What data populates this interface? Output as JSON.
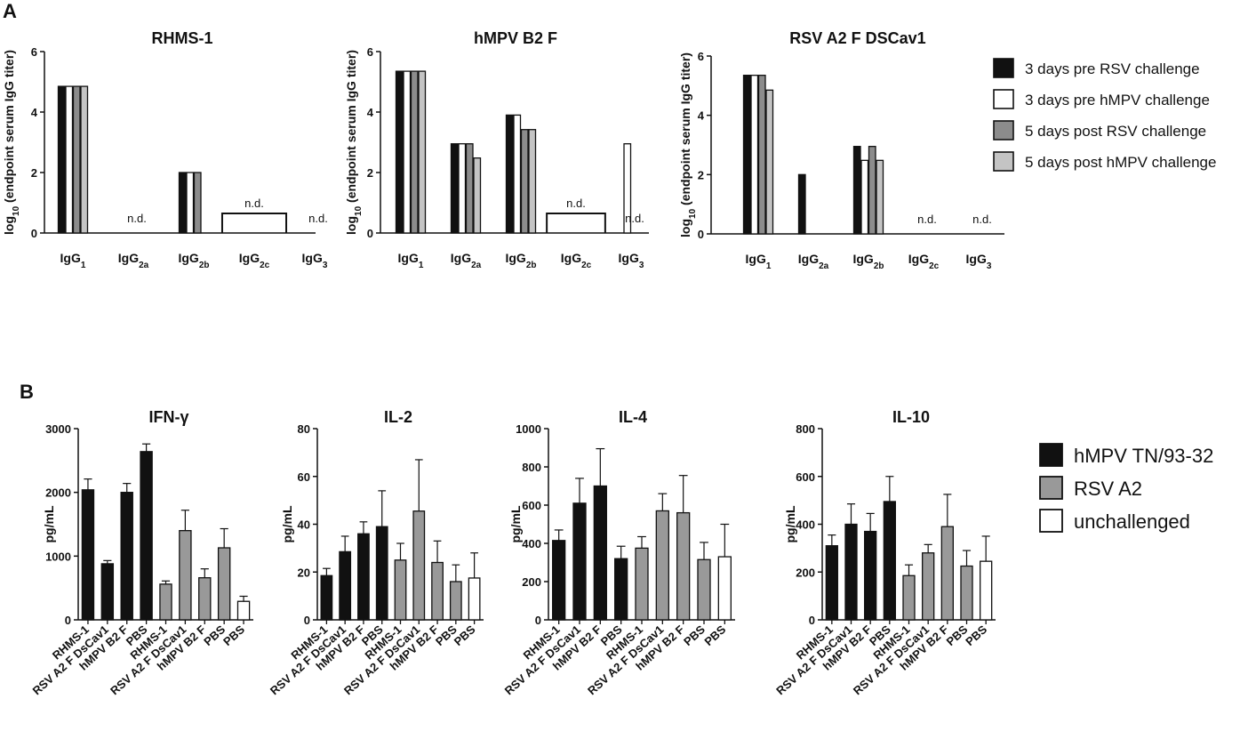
{
  "panels": {
    "A": "A",
    "B": "B"
  },
  "nd_label": "n.d.",
  "panel_a": {
    "ylabel_main": "log",
    "ylabel_sub": "10",
    "ylabel_rest": " (endpoint serum IgG titer)",
    "legend": [
      {
        "label": "3 days pre RSV challenge",
        "color": "#111111"
      },
      {
        "label": "3 days pre hMPV challenge",
        "color": "#ffffff"
      },
      {
        "label": "5 days post RSV challenge",
        "color": "#8c8c8c"
      },
      {
        "label": "5 days post hMPV challenge",
        "color": "#c4c4c4"
      }
    ]
  },
  "panel_b": {
    "ylabel": "pg/mL",
    "legend": [
      {
        "label": "hMPV TN/93-32",
        "color": "#111111"
      },
      {
        "label": "RSV A2",
        "color": "#999999"
      },
      {
        "label": "unchallenged",
        "color": "#ffffff"
      }
    ]
  },
  "chart_data": [
    {
      "type": "bar",
      "title": "RHMS-1",
      "categories": [
        {
          "base": "IgG",
          "sub": "1"
        },
        {
          "base": "IgG",
          "sub": "2a"
        },
        {
          "base": "IgG",
          "sub": "2b"
        },
        {
          "base": "IgG",
          "sub": "2c"
        },
        {
          "base": "IgG",
          "sub": "3"
        }
      ],
      "series": [
        {
          "name": "3 days pre RSV challenge",
          "values": [
            4.85,
            null,
            2.0,
            null,
            null
          ]
        },
        {
          "name": "3 days pre hMPV challenge",
          "values": [
            4.85,
            null,
            2.0,
            null,
            null
          ]
        },
        {
          "name": "5 days post RSV challenge",
          "values": [
            4.85,
            null,
            2.0,
            null,
            null
          ]
        },
        {
          "name": "5 days post hMPV challenge",
          "values": [
            4.85,
            null,
            null,
            null,
            null
          ]
        }
      ],
      "nd": [
        1,
        3,
        4
      ],
      "nd_bracket": [
        3
      ],
      "ylim": [
        0,
        6
      ],
      "yticks": [
        0,
        2,
        4,
        6
      ]
    },
    {
      "type": "bar",
      "title": "hMPV B2 F",
      "categories": [
        {
          "base": "IgG",
          "sub": "1"
        },
        {
          "base": "IgG",
          "sub": "2a"
        },
        {
          "base": "IgG",
          "sub": "2b"
        },
        {
          "base": "IgG",
          "sub": "2c"
        },
        {
          "base": "IgG",
          "sub": "3"
        }
      ],
      "series": [
        {
          "name": "3 days pre RSV challenge",
          "values": [
            5.35,
            2.95,
            3.9,
            null,
            null
          ]
        },
        {
          "name": "3 days pre hMPV challenge",
          "values": [
            5.35,
            2.95,
            3.9,
            null,
            2.95
          ]
        },
        {
          "name": "5 days post RSV challenge",
          "values": [
            5.35,
            2.95,
            3.42,
            null,
            null
          ]
        },
        {
          "name": "5 days post hMPV challenge",
          "values": [
            5.35,
            2.48,
            3.42,
            null,
            null
          ]
        }
      ],
      "nd": [
        3,
        4
      ],
      "nd_bracket": [
        3
      ],
      "ylim": [
        0,
        6
      ],
      "yticks": [
        0,
        2,
        4,
        6
      ]
    },
    {
      "type": "bar",
      "title": "RSV A2 F DSCav1",
      "categories": [
        {
          "base": "IgG",
          "sub": "1"
        },
        {
          "base": "IgG",
          "sub": "2a"
        },
        {
          "base": "IgG",
          "sub": "2b"
        },
        {
          "base": "IgG",
          "sub": "2c"
        },
        {
          "base": "IgG",
          "sub": "3"
        }
      ],
      "series": [
        {
          "name": "3 days pre RSV challenge",
          "values": [
            5.35,
            2.0,
            2.95,
            null,
            null
          ]
        },
        {
          "name": "3 days pre hMPV challenge",
          "values": [
            5.35,
            null,
            2.48,
            null,
            null
          ]
        },
        {
          "name": "5 days post RSV challenge",
          "values": [
            5.35,
            null,
            2.95,
            null,
            null
          ]
        },
        {
          "name": "5 days post hMPV challenge",
          "values": [
            4.85,
            null,
            2.48,
            null,
            null
          ]
        }
      ],
      "nd": [
        3,
        4
      ],
      "nd_bracket": [],
      "ylim": [
        0,
        6
      ],
      "yticks": [
        0,
        2,
        4,
        6
      ]
    },
    {
      "type": "bar",
      "title": "IFN-γ",
      "categories": [
        "RHMS-1",
        "RSV A2 F DsCav1",
        "hMPV B2 F",
        "PBS",
        "RHMS-1",
        "RSV A2 F DsCav1",
        "hMPV B2 F",
        "PBS",
        "PBS"
      ],
      "groups": [
        "hMPV TN/93-32",
        "hMPV TN/93-32",
        "hMPV TN/93-32",
        "hMPV TN/93-32",
        "RSV A2",
        "RSV A2",
        "RSV A2",
        "RSV A2",
        "unchallenged"
      ],
      "values": [
        2040,
        880,
        2000,
        2640,
        560,
        1400,
        660,
        1130,
        290
      ],
      "errors": [
        170,
        50,
        140,
        120,
        50,
        320,
        140,
        300,
        80
      ],
      "ylim": [
        0,
        3000
      ],
      "yticks": [
        0,
        1000,
        2000,
        3000
      ]
    },
    {
      "type": "bar",
      "title": "IL-2",
      "categories": [
        "RHMS-1",
        "RSV A2 F DsCav1",
        "hMPV B2 F",
        "PBS",
        "RHMS-1",
        "RSV A2 F DsCav1",
        "hMPV B2 F",
        "PBS",
        "PBS"
      ],
      "groups": [
        "hMPV TN/93-32",
        "hMPV TN/93-32",
        "hMPV TN/93-32",
        "hMPV TN/93-32",
        "RSV A2",
        "RSV A2",
        "RSV A2",
        "RSV A2",
        "unchallenged"
      ],
      "values": [
        18.5,
        28.5,
        36,
        39,
        25,
        45.5,
        24,
        16,
        17.5
      ],
      "errors": [
        3,
        6.5,
        5,
        15,
        7,
        21.5,
        9,
        7,
        10.5
      ],
      "ylim": [
        0,
        80
      ],
      "yticks": [
        0,
        20,
        40,
        60,
        80
      ]
    },
    {
      "type": "bar",
      "title": "IL-4",
      "categories": [
        "RHMS-1",
        "RSV A2 F DsCav1",
        "hMPV B2 F",
        "PBS",
        "RHMS-1",
        "RSV A2 F DsCav1",
        "hMPV B2 F",
        "PBS",
        "PBS"
      ],
      "groups": [
        "hMPV TN/93-32",
        "hMPV TN/93-32",
        "hMPV TN/93-32",
        "hMPV TN/93-32",
        "RSV A2",
        "RSV A2",
        "RSV A2",
        "RSV A2",
        "unchallenged"
      ],
      "values": [
        415,
        610,
        700,
        320,
        375,
        570,
        560,
        315,
        330
      ],
      "errors": [
        55,
        130,
        195,
        65,
        60,
        90,
        195,
        90,
        170
      ],
      "ylim": [
        0,
        1000
      ],
      "yticks": [
        0,
        200,
        400,
        600,
        800,
        1000
      ]
    },
    {
      "type": "bar",
      "title": "IL-10",
      "categories": [
        "RHMS-1",
        "RSV A2 F DsCav1",
        "hMPV B2 F",
        "PBS",
        "RHMS-1",
        "RSV A2 F DsCav1",
        "hMPV B2 F",
        "PBS",
        "PBS"
      ],
      "groups": [
        "hMPV TN/93-32",
        "hMPV TN/93-32",
        "hMPV TN/93-32",
        "hMPV TN/93-32",
        "RSV A2",
        "RSV A2",
        "RSV A2",
        "RSV A2",
        "unchallenged"
      ],
      "values": [
        310,
        400,
        370,
        495,
        185,
        280,
        390,
        225,
        245
      ],
      "errors": [
        45,
        85,
        75,
        105,
        45,
        35,
        135,
        65,
        105
      ],
      "ylim": [
        0,
        800
      ],
      "yticks": [
        0,
        200,
        400,
        600,
        800
      ]
    }
  ]
}
